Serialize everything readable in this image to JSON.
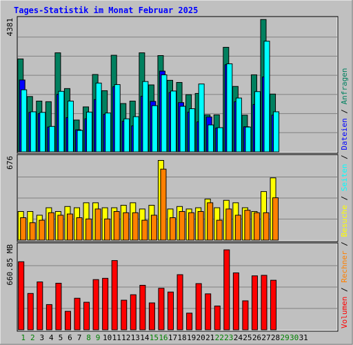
{
  "chart_data": {
    "type": "bar",
    "title": "Tages-Statistik im Monat Februar 2025",
    "categories": [
      "1",
      "2",
      "3",
      "4",
      "5",
      "6",
      "7",
      "8",
      "9",
      "10",
      "11",
      "12",
      "13",
      "14",
      "15",
      "16",
      "17",
      "18",
      "19",
      "20",
      "21",
      "22",
      "23",
      "24",
      "25",
      "26",
      "27",
      "28",
      "29",
      "30",
      "31"
    ],
    "weekend_days": [
      "1",
      "2",
      "8",
      "9",
      "15",
      "16",
      "22",
      "23",
      "29",
      "30"
    ],
    "colors": {
      "background": "#c0c0c0",
      "title": "#0000ff",
      "weekend_day": "#008000",
      "anfragen": "#00805f",
      "dateien": "#0000ff",
      "seiten": "#00ffff",
      "besuche": "#ffff00",
      "rechner": "#ff8000",
      "volumen": "#ff0000"
    },
    "panels": [
      {
        "id": "requests",
        "ymax_label": "4381",
        "ymax": 4381,
        "series": [
          {
            "name": "Anfragen",
            "color": "#00805f",
            "values": [
              3040,
              1810,
              1660,
              1640,
              3240,
              2070,
              1040,
              1470,
              2530,
              2000,
              3160,
              1580,
              1660,
              3240,
              2190,
              3150,
              2340,
              2270,
              1870,
              1910,
              1210,
              1210,
              3420,
              2140,
              1200,
              2520,
              4330,
              1890,
              0,
              0,
              0
            ]
          },
          {
            "name": "Dateien",
            "color": "#0000ff",
            "values": [
              2350,
              1290,
              1250,
              810,
              1880,
              1120,
              720,
              1080,
              1710,
              1230,
              2130,
              1000,
              850,
              1820,
              1650,
              2640,
              1940,
              1610,
              1300,
              980,
              1140,
              780,
              2850,
              1640,
              820,
              1550,
              2450,
              1200,
              0,
              0,
              0
            ]
          },
          {
            "name": "Seiten",
            "color": "#00ffff",
            "values": [
              2030,
              1310,
              1290,
              830,
              1980,
              1660,
              700,
              1300,
              2250,
              1270,
              2200,
              1080,
              1150,
              2300,
              1510,
              2520,
              1990,
              1490,
              1410,
              2220,
              880,
              790,
              2880,
              1760,
              810,
              1970,
              3620,
              1310,
              0,
              0,
              0
            ]
          }
        ]
      },
      {
        "id": "visits",
        "ymax_label": "676",
        "ymax": 676,
        "series": [
          {
            "name": "Besuche",
            "color": "#ffff00",
            "values": [
              230,
              230,
              200,
              260,
              230,
              270,
              260,
              300,
              300,
              260,
              260,
              280,
              300,
              250,
              280,
              640,
              250,
              270,
              250,
              260,
              330,
              260,
              320,
              300,
              260,
              230,
              390,
              500,
              0,
              0,
              0
            ]
          },
          {
            "name": "Rechner",
            "color": "#ff8000",
            "values": [
              180,
              140,
              160,
              220,
              200,
              210,
              180,
              170,
              250,
              170,
              230,
              220,
              220,
              160,
              200,
              570,
              180,
              230,
              220,
              230,
              300,
              160,
              250,
              200,
              240,
              220,
              220,
              340,
              0,
              0,
              0
            ]
          }
        ]
      },
      {
        "id": "volume",
        "ymax_label": "660.85 MB",
        "ymax": 660.85,
        "series": [
          {
            "name": "Volumen",
            "color": "#ff0000",
            "values": [
              526,
              281,
              370,
              195,
              360,
              143,
              244,
              213,
              388,
              398,
              535,
              229,
              271,
              344,
              208,
              321,
              292,
              426,
              129,
              357,
              278,
              184,
              618,
              440,
              224,
              417,
              421,
              383,
              0,
              0,
              0
            ]
          }
        ]
      }
    ],
    "legend_right": {
      "items": [
        {
          "label": "Volumen",
          "color": "#ff0000"
        },
        {
          "label": " / ",
          "color": "#000000"
        },
        {
          "label": "Rechner",
          "color": "#ff8000"
        },
        {
          "label": " / ",
          "color": "#000000"
        },
        {
          "label": "Besuche",
          "color": "#ffff00"
        },
        {
          "label": " / ",
          "color": "#000000"
        },
        {
          "label": "Seiten",
          "color": "#00ffff"
        },
        {
          "label": " / ",
          "color": "#000000"
        },
        {
          "label": "Dateien",
          "color": "#0000ff"
        },
        {
          "label": " / ",
          "color": "#000000"
        },
        {
          "label": "Anfragen",
          "color": "#00805f"
        }
      ]
    }
  }
}
